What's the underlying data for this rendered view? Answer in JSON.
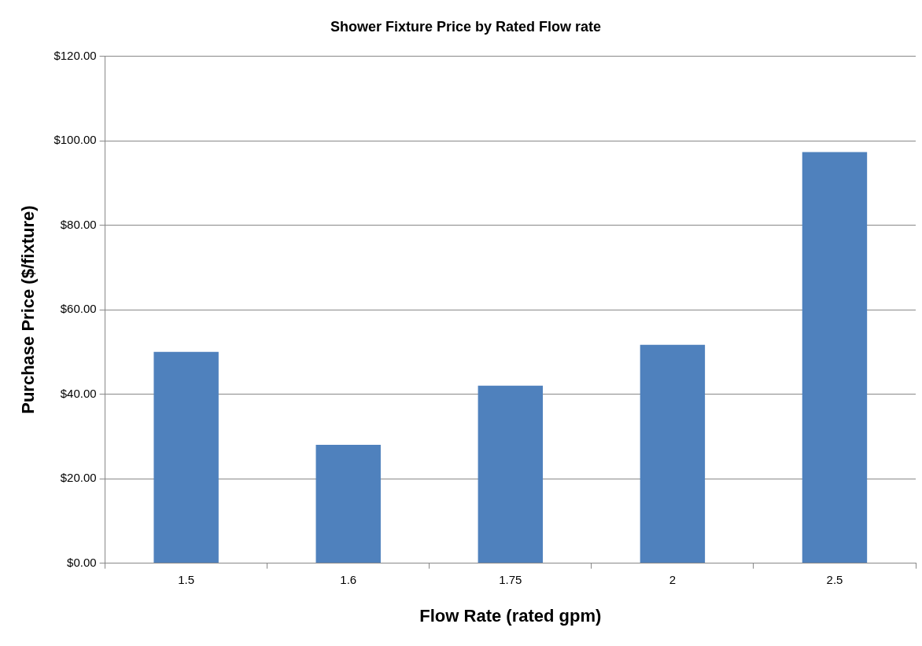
{
  "chart_data": {
    "type": "bar",
    "title": "Shower Fixture Price by Rated Flow rate",
    "xlabel": "Flow Rate (rated gpm)",
    "ylabel": "Purchase Price ($/fixture)",
    "categories": [
      "1.5",
      "1.6",
      "1.75",
      "2",
      "2.5"
    ],
    "values": [
      50,
      28,
      42,
      51.7,
      97.3
    ],
    "color": "#4f81bd",
    "ylim": [
      0,
      120
    ],
    "yticks": [
      {
        "value": 0,
        "label": "$0.00"
      },
      {
        "value": 20,
        "label": "$20.00"
      },
      {
        "value": 40,
        "label": "$40.00"
      },
      {
        "value": 60,
        "label": "$60.00"
      },
      {
        "value": 80,
        "label": "$80.00"
      },
      {
        "value": 100,
        "label": "$100.00"
      },
      {
        "value": 120,
        "label": "$120.00"
      }
    ],
    "grid": "y",
    "legend": false
  }
}
